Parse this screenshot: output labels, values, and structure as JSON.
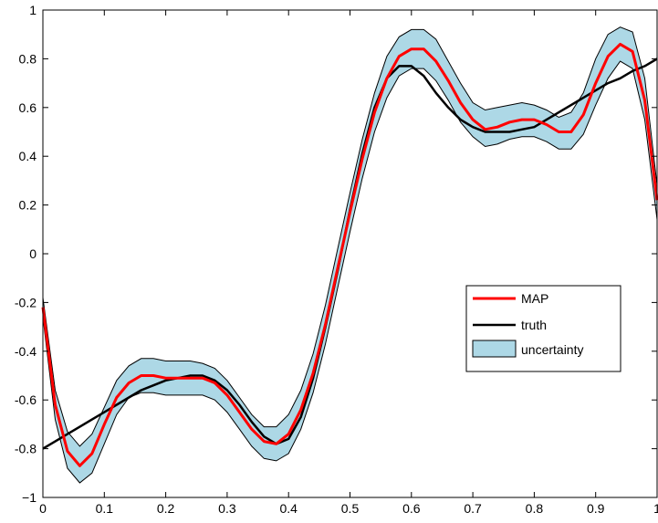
{
  "chart_data": {
    "type": "line",
    "title": "",
    "xlabel": "",
    "ylabel": "",
    "xlim": [
      0,
      1
    ],
    "ylim": [
      -1,
      1
    ],
    "grid": false,
    "legend_position": "lower-right",
    "xticks": [
      0,
      0.1,
      0.2,
      0.3,
      0.4,
      0.5,
      0.6,
      0.7,
      0.8,
      0.9,
      1
    ],
    "xtick_labels": [
      "0",
      "0.1",
      "0.2",
      "0.3",
      "0.4",
      "0.5",
      "0.6",
      "0.7",
      "0.8",
      "0.9",
      "1"
    ],
    "yticks": [
      -1,
      -0.8,
      -0.6,
      -0.4,
      -0.2,
      0,
      0.2,
      0.4,
      0.6,
      0.8,
      1
    ],
    "ytick_labels": [
      "−1",
      "-0.8",
      "-0.6",
      "-0.4",
      "-0.2",
      "0",
      "0.2",
      "0.4",
      "0.6",
      "0.8",
      "1"
    ],
    "x": [
      0,
      0.02,
      0.04,
      0.06,
      0.08,
      0.1,
      0.12,
      0.14,
      0.16,
      0.18,
      0.2,
      0.22,
      0.24,
      0.26,
      0.28,
      0.3,
      0.32,
      0.34,
      0.36,
      0.38,
      0.4,
      0.42,
      0.44,
      0.46,
      0.48,
      0.5,
      0.52,
      0.54,
      0.56,
      0.58,
      0.6,
      0.62,
      0.64,
      0.66,
      0.68,
      0.7,
      0.72,
      0.74,
      0.76,
      0.78,
      0.8,
      0.82,
      0.84,
      0.86,
      0.88,
      0.9,
      0.92,
      0.94,
      0.96,
      0.98,
      1
    ],
    "series": [
      {
        "name": "MAP",
        "color": "#ff0000",
        "values": [
          -0.22,
          -0.62,
          -0.81,
          -0.87,
          -0.82,
          -0.7,
          -0.59,
          -0.53,
          -0.5,
          -0.5,
          -0.51,
          -0.51,
          -0.51,
          -0.51,
          -0.53,
          -0.58,
          -0.65,
          -0.72,
          -0.77,
          -0.78,
          -0.74,
          -0.64,
          -0.49,
          -0.29,
          -0.06,
          0.17,
          0.39,
          0.58,
          0.72,
          0.81,
          0.84,
          0.84,
          0.79,
          0.71,
          0.62,
          0.55,
          0.51,
          0.52,
          0.54,
          0.55,
          0.55,
          0.53,
          0.5,
          0.5,
          0.57,
          0.7,
          0.81,
          0.86,
          0.83,
          0.63,
          0.22
        ]
      },
      {
        "name": "truth",
        "color": "#000000",
        "values": [
          -0.8,
          -0.77,
          -0.74,
          -0.71,
          -0.68,
          -0.65,
          -0.62,
          -0.59,
          -0.56,
          -0.54,
          -0.52,
          -0.51,
          -0.5,
          -0.5,
          -0.52,
          -0.56,
          -0.62,
          -0.69,
          -0.75,
          -0.78,
          -0.76,
          -0.67,
          -0.51,
          -0.3,
          -0.07,
          0.18,
          0.41,
          0.6,
          0.72,
          0.77,
          0.77,
          0.73,
          0.66,
          0.6,
          0.55,
          0.52,
          0.5,
          0.5,
          0.5,
          0.51,
          0.52,
          0.55,
          0.58,
          0.61,
          0.64,
          0.67,
          0.7,
          0.72,
          0.75,
          0.77,
          0.8
        ]
      }
    ],
    "uncertainty": {
      "name": "uncertainty",
      "color": "#add8e6",
      "upper": [
        -0.18,
        -0.56,
        -0.73,
        -0.79,
        -0.74,
        -0.63,
        -0.52,
        -0.46,
        -0.43,
        -0.43,
        -0.44,
        -0.44,
        -0.44,
        -0.45,
        -0.47,
        -0.52,
        -0.59,
        -0.66,
        -0.71,
        -0.71,
        -0.66,
        -0.56,
        -0.41,
        -0.21,
        0.02,
        0.25,
        0.47,
        0.66,
        0.81,
        0.89,
        0.92,
        0.92,
        0.88,
        0.79,
        0.7,
        0.62,
        0.59,
        0.6,
        0.61,
        0.62,
        0.61,
        0.59,
        0.56,
        0.58,
        0.66,
        0.8,
        0.9,
        0.93,
        0.91,
        0.72,
        0.28
      ],
      "lower": [
        -0.26,
        -0.68,
        -0.88,
        -0.94,
        -0.9,
        -0.78,
        -0.66,
        -0.59,
        -0.57,
        -0.57,
        -0.58,
        -0.58,
        -0.58,
        -0.58,
        -0.6,
        -0.65,
        -0.72,
        -0.79,
        -0.84,
        -0.85,
        -0.82,
        -0.72,
        -0.57,
        -0.37,
        -0.14,
        0.09,
        0.31,
        0.5,
        0.64,
        0.73,
        0.76,
        0.76,
        0.71,
        0.63,
        0.54,
        0.48,
        0.44,
        0.45,
        0.47,
        0.48,
        0.48,
        0.46,
        0.43,
        0.43,
        0.49,
        0.61,
        0.72,
        0.79,
        0.76,
        0.55,
        0.14
      ]
    },
    "legend": [
      "MAP",
      "truth",
      "uncertainty"
    ]
  }
}
